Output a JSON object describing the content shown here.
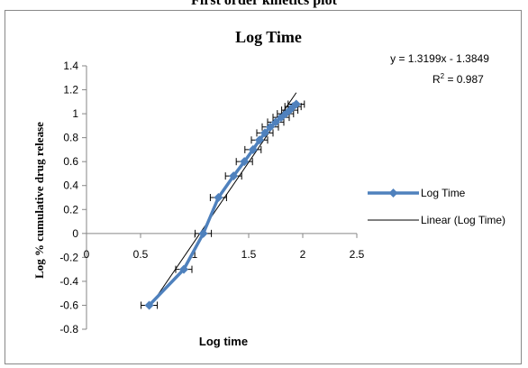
{
  "page_title": "First order kinetics plot",
  "chart_data": {
    "type": "line",
    "title": "Log Time",
    "xlabel": "Log time",
    "ylabel": "Log % cumulative drug release",
    "xlim": [
      0,
      2.5
    ],
    "ylim": [
      -0.8,
      1.4
    ],
    "x_ticks": [
      "0",
      "0.5",
      "1",
      "1.5",
      "2",
      "2.5"
    ],
    "y_ticks": [
      "-0.8",
      "-0.6",
      "-0.4",
      "-0.2",
      "0",
      "0.2",
      "0.4",
      "0.6",
      "0.8",
      "1",
      "1.2",
      "1.4"
    ],
    "grid": false,
    "legend_position": "right",
    "series": [
      {
        "name": "Log Time",
        "color": "#4f81bd",
        "marker": "diamond",
        "error_bars": "x",
        "x": [
          0.58,
          0.9,
          1.08,
          1.22,
          1.36,
          1.46,
          1.54,
          1.6,
          1.65,
          1.7,
          1.75,
          1.8,
          1.84,
          1.88,
          1.91,
          1.94
        ],
        "y": [
          -0.6,
          -0.3,
          0.0,
          0.3,
          0.48,
          0.6,
          0.7,
          0.78,
          0.84,
          0.89,
          0.93,
          0.97,
          1.0,
          1.03,
          1.06,
          1.08
        ]
      }
    ],
    "trendline": {
      "name": "Linear (Log Time)",
      "color": "#000000",
      "slope": 1.3199,
      "intercept": -1.3849,
      "x_range": [
        0.6,
        1.94
      ]
    },
    "annotations": {
      "equation": "y = 1.3199x - 1.3849",
      "r_squared_label": "R",
      "r_squared_exponent": "2",
      "r_squared_value": " = 0.987"
    }
  }
}
